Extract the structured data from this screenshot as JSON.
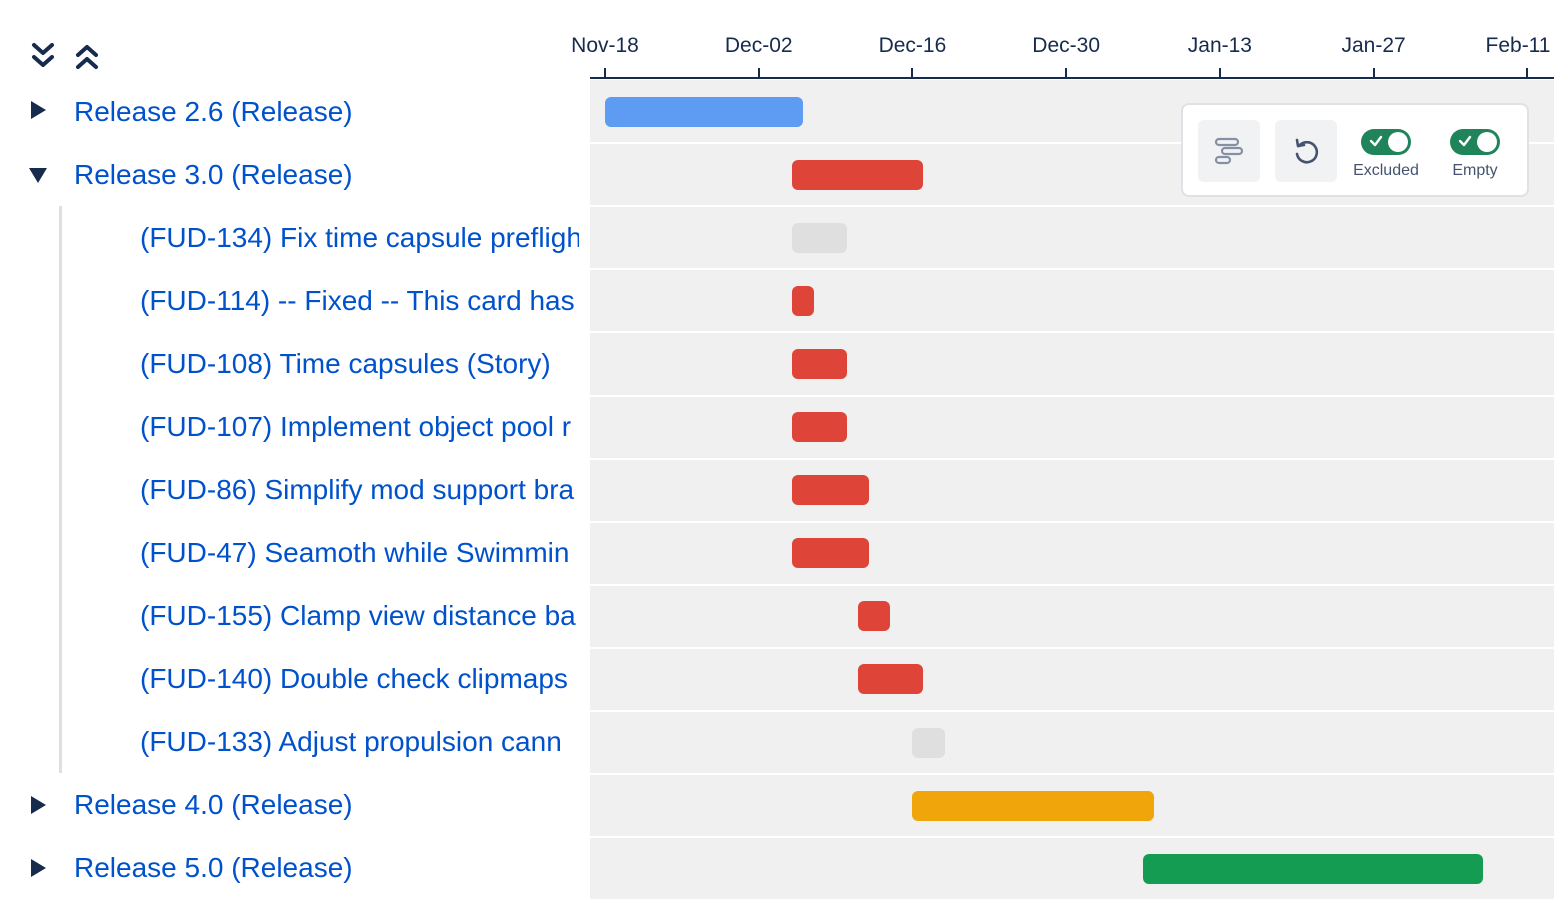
{
  "controls": {
    "expand_all_icon": "chevrons-down-icon",
    "collapse_all_icon": "chevrons-up-icon"
  },
  "rows": [
    {
      "label": "Release 2.6 (Release)",
      "kind": "release",
      "expanded": false
    },
    {
      "label": "Release 3.0 (Release)",
      "kind": "release",
      "expanded": true
    },
    {
      "label": "(FUD-134) Fix time capsule prefligh",
      "kind": "child"
    },
    {
      "label": "(FUD-114) -- Fixed -- This card has",
      "kind": "child"
    },
    {
      "label": "(FUD-108) Time capsules (Story)",
      "kind": "child"
    },
    {
      "label": "(FUD-107) Implement object pool r",
      "kind": "child"
    },
    {
      "label": "(FUD-86) Simplify mod support bra",
      "kind": "child"
    },
    {
      "label": "(FUD-47) Seamoth while Swimmin",
      "kind": "child"
    },
    {
      "label": "(FUD-155) Clamp view distance ba",
      "kind": "child"
    },
    {
      "label": "(FUD-140) Double check clipmaps",
      "kind": "child"
    },
    {
      "label": "(FUD-133) Adjust propulsion cann",
      "kind": "child"
    },
    {
      "label": "Release 4.0 (Release)",
      "kind": "release",
      "expanded": false
    },
    {
      "label": "Release 5.0 (Release)",
      "kind": "release",
      "expanded": false
    }
  ],
  "axis": {
    "ticks": [
      "Nov-18",
      "Dec-02",
      "Dec-16",
      "Dec-30",
      "Jan-13",
      "Jan-27",
      "Feb-11"
    ]
  },
  "bars": [
    {
      "row": 0,
      "start_day": 0,
      "end_day": 18,
      "color": "#5e9bf3"
    },
    {
      "row": 1,
      "start_day": 17,
      "end_day": 29,
      "color": "#de4538"
    },
    {
      "row": 2,
      "start_day": 17,
      "end_day": 22,
      "color": "#dfdfdf"
    },
    {
      "row": 3,
      "start_day": 17,
      "end_day": 19,
      "color": "#de4538"
    },
    {
      "row": 4,
      "start_day": 17,
      "end_day": 22,
      "color": "#de4538"
    },
    {
      "row": 5,
      "start_day": 17,
      "end_day": 22,
      "color": "#de4538"
    },
    {
      "row": 6,
      "start_day": 17,
      "end_day": 24,
      "color": "#de4538"
    },
    {
      "row": 7,
      "start_day": 17,
      "end_day": 24,
      "color": "#de4538"
    },
    {
      "row": 8,
      "start_day": 23,
      "end_day": 26,
      "color": "#de4538"
    },
    {
      "row": 9,
      "start_day": 23,
      "end_day": 29,
      "color": "#de4538"
    },
    {
      "row": 10,
      "start_day": 28,
      "end_day": 31,
      "color": "#dfdfdf"
    },
    {
      "row": 11,
      "start_day": 28,
      "end_day": 50,
      "color": "#f0a60a"
    },
    {
      "row": 12,
      "start_day": 49,
      "end_day": 80,
      "color": "#159c53"
    }
  ],
  "toolbar": {
    "fit_icon": "timeline-fit-icon",
    "reset_icon": "reset-icon",
    "excluded_label": "Excluded",
    "excluded_on": true,
    "empty_label": "Empty",
    "empty_on": true,
    "toggle_color": "#1f845a"
  }
}
